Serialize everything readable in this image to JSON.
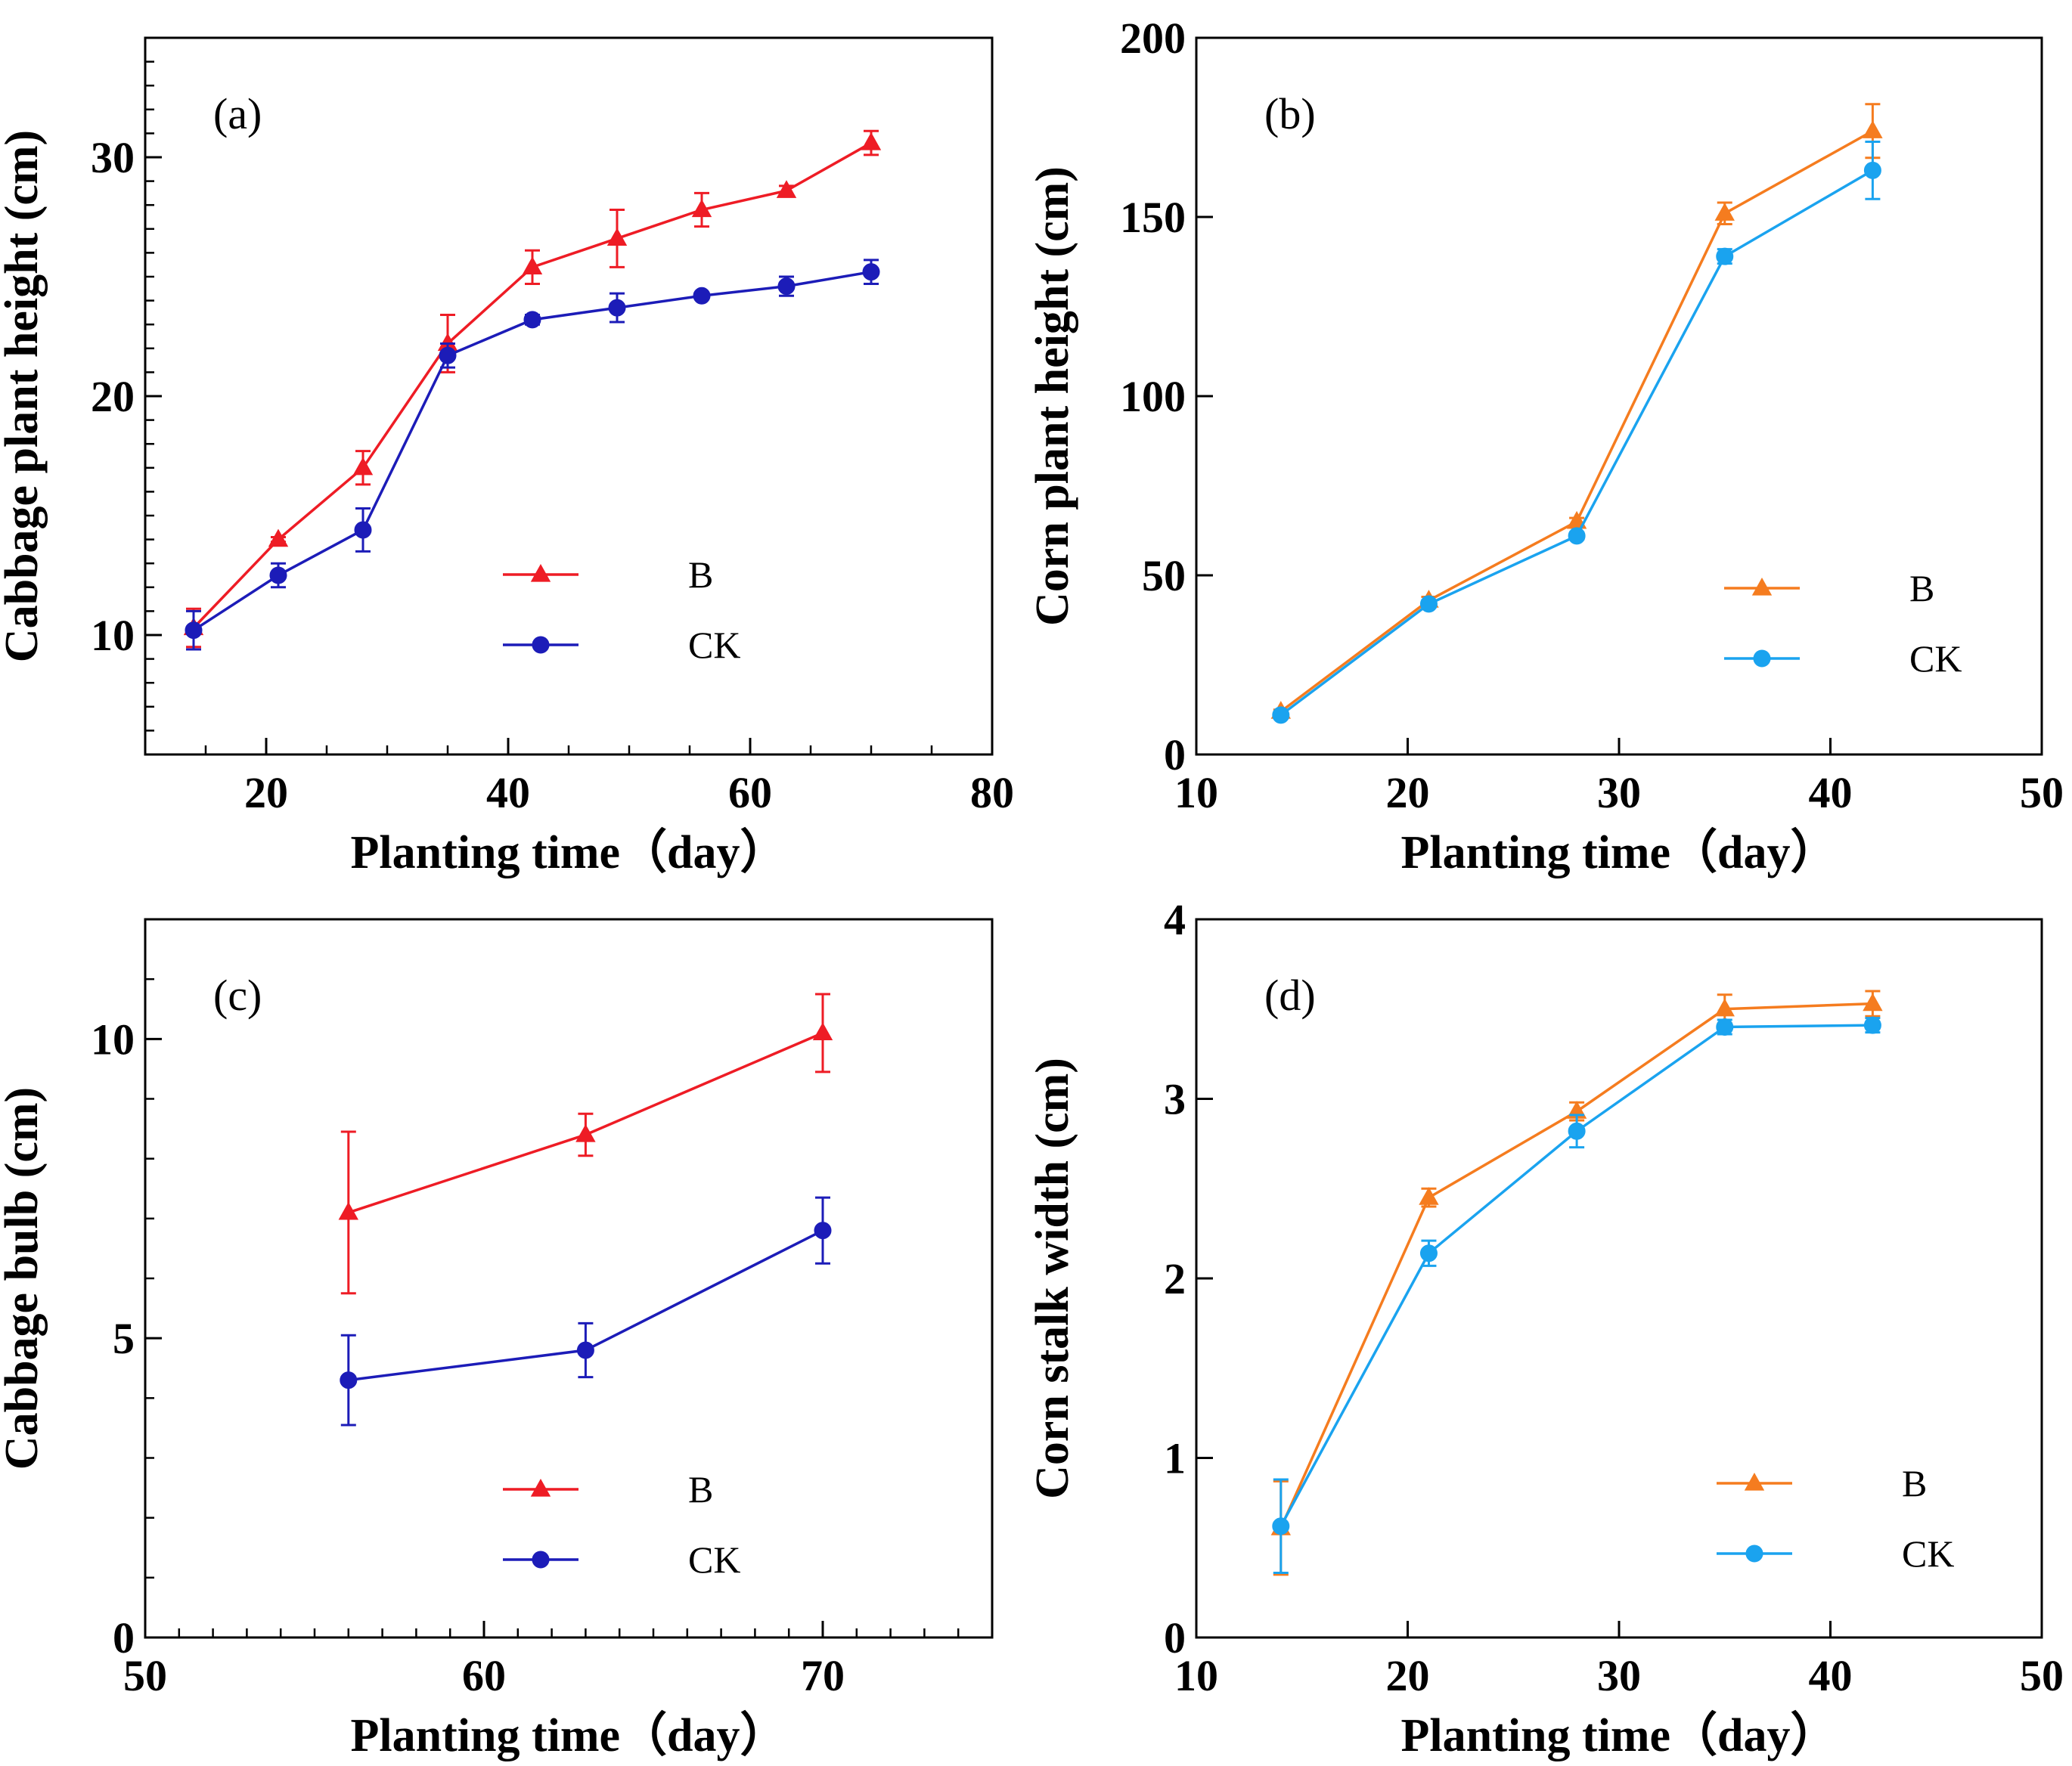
{
  "colors": {
    "red": "#ee1c25",
    "blue": "#1c1cb8",
    "orange": "#f57c1f",
    "sky": "#1aa3ef"
  },
  "chart_data": [
    {
      "type": "line",
      "panel_label": "(a)",
      "xlabel": "Planting time（day）",
      "ylabel": "Cabbage plant height (cm)",
      "xlim": [
        10,
        80
      ],
      "ylim": [
        5,
        35
      ],
      "x_ticks": [
        20,
        40,
        60,
        80
      ],
      "x_tick_labels": [
        "20",
        "40",
        "60",
        "80"
      ],
      "x_minor_step": 5,
      "y_ticks": [
        10,
        20,
        30
      ],
      "y_tick_labels": [
        "10",
        "20",
        "30"
      ],
      "y_minor_step": 1,
      "legend_position": "lower-right",
      "series": [
        {
          "name": "B",
          "marker": "triangle",
          "color_key": "red",
          "x": [
            14,
            21,
            28,
            35,
            42,
            49,
            56,
            63,
            70
          ],
          "y": [
            10.3,
            14.0,
            17.0,
            22.2,
            25.4,
            26.6,
            27.8,
            28.6,
            30.6
          ],
          "err": [
            0.8,
            0.1,
            0.7,
            1.2,
            0.7,
            1.2,
            0.7,
            0.2,
            0.5
          ]
        },
        {
          "name": "CK",
          "marker": "circle",
          "color_key": "blue",
          "x": [
            14,
            21,
            28,
            35,
            42,
            49,
            56,
            63,
            70
          ],
          "y": [
            10.2,
            12.5,
            14.4,
            21.7,
            23.2,
            23.7,
            24.2,
            24.6,
            25.2
          ],
          "err": [
            0.8,
            0.5,
            0.9,
            0.5,
            0.2,
            0.6,
            0.1,
            0.4,
            0.5
          ]
        }
      ]
    },
    {
      "type": "line",
      "panel_label": "(b)",
      "xlabel": "Planting time（day）",
      "ylabel": "Corn plant height (cm)",
      "xlim": [
        10,
        50
      ],
      "ylim": [
        0,
        200
      ],
      "x_ticks": [
        10,
        20,
        30,
        40,
        50
      ],
      "x_tick_labels": [
        "10",
        "20",
        "30",
        "40",
        "50"
      ],
      "x_minor_step": 0,
      "y_ticks": [
        0,
        50,
        100,
        150,
        200
      ],
      "y_tick_labels": [
        "0",
        "50",
        "100",
        "150",
        "200"
      ],
      "y_minor_step": 0,
      "legend_position": "lower-right",
      "series": [
        {
          "name": "B",
          "marker": "triangle",
          "color_key": "orange",
          "x": [
            14,
            21,
            28,
            35,
            42
          ],
          "y": [
            12,
            43,
            65,
            151,
            174
          ],
          "err": [
            0.5,
            1.0,
            1.0,
            3.0,
            7.5
          ]
        },
        {
          "name": "CK",
          "marker": "circle",
          "color_key": "sky",
          "x": [
            14,
            21,
            28,
            35,
            42
          ],
          "y": [
            11,
            42,
            61,
            139,
            163
          ],
          "err": [
            0.5,
            1.0,
            1.0,
            2.0,
            8.0
          ]
        }
      ]
    },
    {
      "type": "line",
      "panel_label": "(c)",
      "xlabel": "Planting time（day）",
      "ylabel": "Cabbage bulb (cm)",
      "xlim": [
        50,
        75
      ],
      "ylim": [
        0,
        12
      ],
      "x_ticks": [
        50,
        60,
        70
      ],
      "x_tick_labels": [
        "50",
        "60",
        "70"
      ],
      "x_minor_step": 1,
      "y_ticks": [
        0,
        5,
        10
      ],
      "y_tick_labels": [
        "0",
        "5",
        "10"
      ],
      "y_minor_step": 1,
      "legend_position": "lower-right",
      "series": [
        {
          "name": "B",
          "marker": "triangle",
          "color_key": "red",
          "x": [
            56,
            63,
            70
          ],
          "y": [
            7.1,
            8.4,
            10.1
          ],
          "err": [
            1.35,
            0.35,
            0.65
          ]
        },
        {
          "name": "CK",
          "marker": "circle",
          "color_key": "blue",
          "x": [
            56,
            63,
            70
          ],
          "y": [
            4.3,
            4.8,
            6.8
          ],
          "err": [
            0.75,
            0.45,
            0.55
          ]
        }
      ]
    },
    {
      "type": "line",
      "panel_label": "(d)",
      "xlabel": "Planting time（day）",
      "ylabel": "Corn stalk width (cm)",
      "xlim": [
        10,
        50
      ],
      "ylim": [
        0,
        4
      ],
      "x_ticks": [
        10,
        20,
        30,
        40,
        50
      ],
      "x_tick_labels": [
        "10",
        "20",
        "30",
        "40",
        "50"
      ],
      "x_minor_step": 0,
      "y_ticks": [
        0,
        1,
        2,
        3,
        4
      ],
      "y_tick_labels": [
        "0",
        "1",
        "2",
        "3",
        "4"
      ],
      "y_minor_step": 0,
      "legend_position": "lower-right",
      "series": [
        {
          "name": "B",
          "marker": "triangle",
          "color_key": "orange",
          "x": [
            14,
            21,
            28,
            35,
            42
          ],
          "y": [
            0.61,
            2.45,
            2.93,
            3.5,
            3.53
          ],
          "err": [
            0.26,
            0.05,
            0.05,
            0.08,
            0.07
          ]
        },
        {
          "name": "CK",
          "marker": "circle",
          "color_key": "sky",
          "x": [
            14,
            21,
            28,
            35,
            42
          ],
          "y": [
            0.62,
            2.14,
            2.82,
            3.4,
            3.41
          ],
          "err": [
            0.26,
            0.07,
            0.09,
            0.04,
            0.04
          ]
        }
      ]
    }
  ]
}
